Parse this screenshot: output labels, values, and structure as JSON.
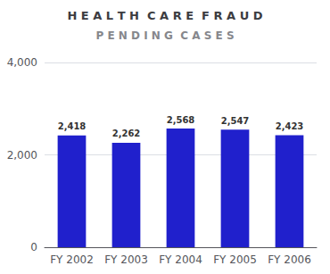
{
  "chart_data": {
    "type": "bar",
    "title": "H E A L T H  C A R E  F R A U D",
    "subtitle": "P E N D I N G  C A S E S",
    "categories": [
      "FY 2002",
      "FY 2003",
      "FY 2004",
      "FY 2005",
      "FY 2006"
    ],
    "values": [
      2418,
      2262,
      2568,
      2547,
      2423
    ],
    "value_labels": [
      "2,418",
      "2,262",
      "2,568",
      "2,547",
      "2,423"
    ],
    "data_labels": true,
    "color": "#2020cc",
    "ylim": [
      0,
      4000
    ],
    "yticks": [
      0,
      2000,
      4000
    ],
    "grid": true
  }
}
